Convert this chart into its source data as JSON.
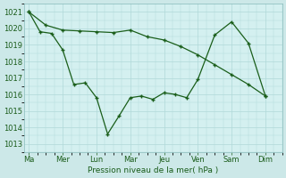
{
  "xlabel": "Pression niveau de la mer( hPa )",
  "background_color": "#cce8e8",
  "plot_bg_color": "#d4f0f0",
  "grid_color": "#b0d8d8",
  "line_color": "#1a5e1a",
  "ylim": [
    1012.5,
    1021.5
  ],
  "yticks": [
    1013,
    1014,
    1015,
    1016,
    1017,
    1018,
    1019,
    1020,
    1021
  ],
  "xtick_labels": [
    "Ma",
    "Mer",
    "Lun",
    "Mar",
    "Jeu",
    "Ven",
    "Sam",
    "Dim"
  ],
  "xtick_positions": [
    0,
    1,
    2,
    3,
    4,
    5,
    6,
    7
  ],
  "line1_x": [
    0,
    0.33,
    0.67,
    1.0,
    1.33,
    1.67,
    2.0,
    2.33,
    2.67,
    3.0,
    3.33,
    3.67,
    4.0,
    4.33,
    4.67,
    5.0,
    5.5,
    6.0,
    6.5,
    7.0
  ],
  "line1_y": [
    1021.0,
    1019.8,
    1019.7,
    1018.7,
    1016.6,
    1016.7,
    1015.8,
    1013.6,
    1014.7,
    1015.8,
    1015.9,
    1015.7,
    1016.1,
    1016.0,
    1015.8,
    1016.9,
    1019.6,
    1020.4,
    1019.1,
    1015.9
  ],
  "line2_x": [
    0,
    0.5,
    1.0,
    1.5,
    2.0,
    2.5,
    3.0,
    3.5,
    4.0,
    4.5,
    5.0,
    5.5,
    6.0,
    6.5,
    7.0
  ],
  "line2_y": [
    1021.0,
    1020.2,
    1019.9,
    1019.85,
    1019.8,
    1019.75,
    1019.9,
    1019.5,
    1019.3,
    1018.9,
    1018.4,
    1017.8,
    1017.2,
    1016.6,
    1015.9
  ]
}
